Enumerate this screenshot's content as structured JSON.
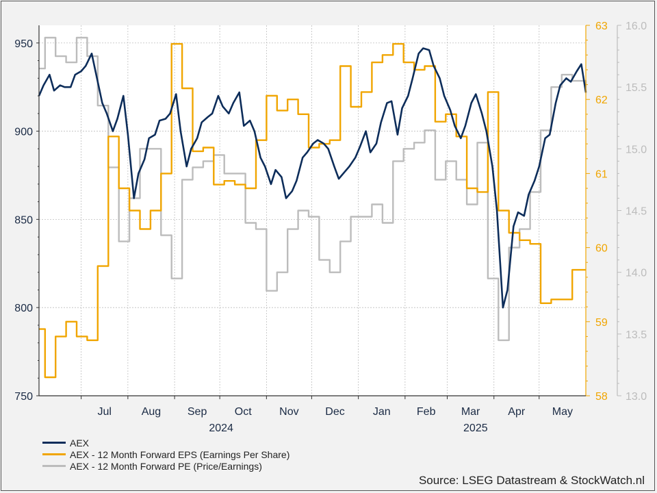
{
  "chart_data": {
    "type": "line",
    "x_axis": {
      "months": [
        "Jul",
        "Aug",
        "Sep",
        "Oct",
        "Nov",
        "Dec",
        "Jan",
        "Feb",
        "Mar",
        "Apr",
        "May"
      ],
      "years": [
        "2024",
        "2025"
      ]
    },
    "left_axis": {
      "ylim": [
        750,
        960
      ],
      "ticks": [
        750,
        800,
        850,
        900,
        950
      ]
    },
    "right_axis_eps": {
      "ylim": [
        58,
        63
      ],
      "ticks": [
        58,
        59,
        60,
        61,
        62,
        63
      ],
      "color": "#f0a500"
    },
    "right_axis_pe": {
      "ylim": [
        13.0,
        16.0
      ],
      "ticks": [
        "13.0",
        "13.5",
        "14.0",
        "14.5",
        "15.0",
        "15.5",
        "16.0"
      ],
      "color": "#bcbcbc"
    },
    "x_range": [
      "2024-06-03",
      "2025-06-01"
    ],
    "grid": true,
    "series": [
      {
        "name": "AEX",
        "axis": "left",
        "color": "#0d2d5a",
        "points": [
          [
            "2024-06-03",
            920
          ],
          [
            "2024-06-06",
            926
          ],
          [
            "2024-06-10",
            932
          ],
          [
            "2024-06-13",
            923
          ],
          [
            "2024-06-17",
            926
          ],
          [
            "2024-06-20",
            925
          ],
          [
            "2024-06-24",
            925
          ],
          [
            "2024-06-27",
            932
          ],
          [
            "2024-07-01",
            934
          ],
          [
            "2024-07-04",
            937
          ],
          [
            "2024-07-08",
            944
          ],
          [
            "2024-07-11",
            932
          ],
          [
            "2024-07-15",
            916
          ],
          [
            "2024-07-18",
            910
          ],
          [
            "2024-07-22",
            900
          ],
          [
            "2024-07-25",
            907
          ],
          [
            "2024-07-29",
            920
          ],
          [
            "2024-08-01",
            898
          ],
          [
            "2024-08-05",
            862
          ],
          [
            "2024-08-08",
            876
          ],
          [
            "2024-08-12",
            884
          ],
          [
            "2024-08-15",
            896
          ],
          [
            "2024-08-19",
            898
          ],
          [
            "2024-08-22",
            906
          ],
          [
            "2024-08-26",
            907
          ],
          [
            "2024-08-29",
            910
          ],
          [
            "2024-09-02",
            921
          ],
          [
            "2024-09-05",
            900
          ],
          [
            "2024-09-09",
            880
          ],
          [
            "2024-09-12",
            890
          ],
          [
            "2024-09-16",
            896
          ],
          [
            "2024-09-19",
            905
          ],
          [
            "2024-09-23",
            908
          ],
          [
            "2024-09-26",
            910
          ],
          [
            "2024-09-30",
            920
          ],
          [
            "2024-10-03",
            914
          ],
          [
            "2024-10-07",
            910
          ],
          [
            "2024-10-10",
            916
          ],
          [
            "2024-10-14",
            922
          ],
          [
            "2024-10-17",
            903
          ],
          [
            "2024-10-21",
            906
          ],
          [
            "2024-10-24",
            900
          ],
          [
            "2024-10-28",
            885
          ],
          [
            "2024-10-31",
            880
          ],
          [
            "2024-11-04",
            870
          ],
          [
            "2024-11-07",
            878
          ],
          [
            "2024-11-11",
            874
          ],
          [
            "2024-11-14",
            862
          ],
          [
            "2024-11-18",
            866
          ],
          [
            "2024-11-21",
            872
          ],
          [
            "2024-11-25",
            885
          ],
          [
            "2024-11-28",
            888
          ],
          [
            "2024-12-02",
            893
          ],
          [
            "2024-12-05",
            895
          ],
          [
            "2024-12-09",
            893
          ],
          [
            "2024-12-12",
            890
          ],
          [
            "2024-12-16",
            880
          ],
          [
            "2024-12-19",
            873
          ],
          [
            "2024-12-23",
            877
          ],
          [
            "2024-12-26",
            880
          ],
          [
            "2024-12-30",
            885
          ],
          [
            "2025-01-02",
            891
          ],
          [
            "2025-01-06",
            900
          ],
          [
            "2025-01-09",
            888
          ],
          [
            "2025-01-13",
            893
          ],
          [
            "2025-01-16",
            905
          ],
          [
            "2025-01-20",
            916
          ],
          [
            "2025-01-23",
            917
          ],
          [
            "2025-01-27",
            898
          ],
          [
            "2025-01-30",
            913
          ],
          [
            "2025-02-03",
            920
          ],
          [
            "2025-02-06",
            930
          ],
          [
            "2025-02-10",
            944
          ],
          [
            "2025-02-13",
            947
          ],
          [
            "2025-02-17",
            946
          ],
          [
            "2025-02-20",
            937
          ],
          [
            "2025-02-24",
            930
          ],
          [
            "2025-02-27",
            920
          ],
          [
            "2025-03-03",
            912
          ],
          [
            "2025-03-06",
            903
          ],
          [
            "2025-03-10",
            896
          ],
          [
            "2025-03-13",
            903
          ],
          [
            "2025-03-17",
            916
          ],
          [
            "2025-03-20",
            921
          ],
          [
            "2025-03-24",
            910
          ],
          [
            "2025-03-27",
            900
          ],
          [
            "2025-03-31",
            880
          ],
          [
            "2025-04-03",
            855
          ],
          [
            "2025-04-07",
            800
          ],
          [
            "2025-04-10",
            810
          ],
          [
            "2025-04-14",
            846
          ],
          [
            "2025-04-17",
            854
          ],
          [
            "2025-04-21",
            852
          ],
          [
            "2025-04-24",
            864
          ],
          [
            "2025-04-28",
            872
          ],
          [
            "2025-05-01",
            880
          ],
          [
            "2025-05-05",
            896
          ],
          [
            "2025-05-08",
            898
          ],
          [
            "2025-05-12",
            916
          ],
          [
            "2025-05-15",
            926
          ],
          [
            "2025-05-19",
            930
          ],
          [
            "2025-05-22",
            928
          ],
          [
            "2025-05-26",
            934
          ],
          [
            "2025-05-29",
            938
          ],
          [
            "2025-06-01",
            922
          ]
        ]
      },
      {
        "name": "AEX - 12 Month Forward EPS (Earnings Per Share)",
        "axis": "eps",
        "color": "#f0a500",
        "points": [
          [
            "2024-06-03",
            58.9
          ],
          [
            "2024-06-07",
            58.25
          ],
          [
            "2024-06-14",
            58.8
          ],
          [
            "2024-06-21",
            59.0
          ],
          [
            "2024-06-28",
            58.8
          ],
          [
            "2024-07-05",
            58.75
          ],
          [
            "2024-07-12",
            59.75
          ],
          [
            "2024-07-19",
            61.5
          ],
          [
            "2024-07-26",
            60.8
          ],
          [
            "2024-08-02",
            60.5
          ],
          [
            "2024-08-09",
            60.25
          ],
          [
            "2024-08-16",
            60.5
          ],
          [
            "2024-08-23",
            61.0
          ],
          [
            "2024-08-30",
            62.75
          ],
          [
            "2024-09-06",
            62.15
          ],
          [
            "2024-09-13",
            61.3
          ],
          [
            "2024-09-20",
            61.35
          ],
          [
            "2024-09-27",
            60.85
          ],
          [
            "2024-10-04",
            60.9
          ],
          [
            "2024-10-11",
            60.85
          ],
          [
            "2024-10-18",
            60.8
          ],
          [
            "2024-10-25",
            61.45
          ],
          [
            "2024-11-01",
            62.05
          ],
          [
            "2024-11-08",
            61.85
          ],
          [
            "2024-11-15",
            62.0
          ],
          [
            "2024-11-22",
            61.8
          ],
          [
            "2024-11-29",
            61.35
          ],
          [
            "2024-12-06",
            61.4
          ],
          [
            "2024-12-13",
            61.45
          ],
          [
            "2024-12-20",
            62.45
          ],
          [
            "2024-12-27",
            61.9
          ],
          [
            "2025-01-03",
            62.1
          ],
          [
            "2025-01-10",
            62.5
          ],
          [
            "2025-01-17",
            62.6
          ],
          [
            "2025-01-24",
            62.75
          ],
          [
            "2025-01-31",
            62.5
          ],
          [
            "2025-02-07",
            62.4
          ],
          [
            "2025-02-14",
            62.45
          ],
          [
            "2025-02-21",
            61.7
          ],
          [
            "2025-02-28",
            61.8
          ],
          [
            "2025-03-07",
            61.5
          ],
          [
            "2025-03-14",
            60.8
          ],
          [
            "2025-03-21",
            60.75
          ],
          [
            "2025-03-28",
            62.1
          ],
          [
            "2025-04-04",
            60.5
          ],
          [
            "2025-04-11",
            60.2
          ],
          [
            "2025-04-18",
            60.1
          ],
          [
            "2025-04-25",
            60.05
          ],
          [
            "2025-05-02",
            59.25
          ],
          [
            "2025-05-09",
            59.3
          ],
          [
            "2025-05-16",
            59.3
          ],
          [
            "2025-05-23",
            59.7
          ],
          [
            "2025-06-01",
            59.7
          ]
        ]
      },
      {
        "name": "AEX - 12 Month Forward PE (Price/Earnings)",
        "axis": "pe",
        "color": "#bcbcbc",
        "points": [
          [
            "2024-06-03",
            15.65
          ],
          [
            "2024-06-07",
            15.9
          ],
          [
            "2024-06-14",
            15.75
          ],
          [
            "2024-06-21",
            15.7
          ],
          [
            "2024-06-28",
            15.9
          ],
          [
            "2024-07-05",
            15.75
          ],
          [
            "2024-07-12",
            15.35
          ],
          [
            "2024-07-19",
            14.85
          ],
          [
            "2024-07-26",
            14.25
          ],
          [
            "2024-08-02",
            14.6
          ],
          [
            "2024-08-09",
            15.0
          ],
          [
            "2024-08-16",
            15.0
          ],
          [
            "2024-08-23",
            14.3
          ],
          [
            "2024-08-30",
            13.95
          ],
          [
            "2024-09-06",
            14.75
          ],
          [
            "2024-09-13",
            14.85
          ],
          [
            "2024-09-20",
            14.9
          ],
          [
            "2024-09-27",
            14.95
          ],
          [
            "2024-10-04",
            14.8
          ],
          [
            "2024-10-11",
            14.8
          ],
          [
            "2024-10-18",
            14.4
          ],
          [
            "2024-10-25",
            14.35
          ],
          [
            "2024-11-01",
            13.85
          ],
          [
            "2024-11-08",
            14.0
          ],
          [
            "2024-11-15",
            14.35
          ],
          [
            "2024-11-22",
            14.5
          ],
          [
            "2024-11-29",
            14.45
          ],
          [
            "2024-12-06",
            14.1
          ],
          [
            "2024-12-13",
            14.0
          ],
          [
            "2024-12-20",
            14.25
          ],
          [
            "2024-12-27",
            14.45
          ],
          [
            "2025-01-03",
            14.45
          ],
          [
            "2025-01-10",
            14.55
          ],
          [
            "2025-01-17",
            14.4
          ],
          [
            "2025-01-24",
            14.9
          ],
          [
            "2025-01-31",
            15.0
          ],
          [
            "2025-02-07",
            15.05
          ],
          [
            "2025-02-14",
            15.15
          ],
          [
            "2025-02-21",
            14.75
          ],
          [
            "2025-02-28",
            14.9
          ],
          [
            "2025-03-07",
            14.75
          ],
          [
            "2025-03-14",
            14.55
          ],
          [
            "2025-03-21",
            15.05
          ],
          [
            "2025-03-28",
            13.95
          ],
          [
            "2025-04-04",
            13.45
          ],
          [
            "2025-04-11",
            14.2
          ],
          [
            "2025-04-18",
            14.35
          ],
          [
            "2025-04-25",
            14.65
          ],
          [
            "2025-05-02",
            15.15
          ],
          [
            "2025-05-09",
            15.5
          ],
          [
            "2025-05-16",
            15.6
          ],
          [
            "2025-05-23",
            15.55
          ],
          [
            "2025-06-01",
            15.45
          ]
        ]
      }
    ],
    "legend_position": "bottom-left",
    "source": "Source: LSEG Datastream & StockWatch.nl"
  }
}
